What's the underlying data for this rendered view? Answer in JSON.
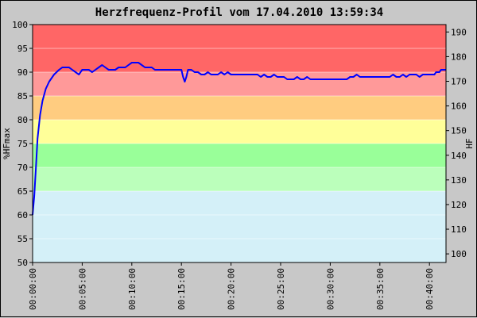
{
  "chart_data": {
    "type": "line",
    "title": "Herzfrequenz-Profil vom 17.04.2010 13:59:34",
    "ylabel": "%HFmax",
    "y2label": "HF",
    "ylim": [
      50,
      100
    ],
    "y2lim": [
      96.5,
      193
    ],
    "yticks": [
      "50",
      "55",
      "60",
      "65",
      "70",
      "75",
      "80",
      "85",
      "90",
      "95",
      "100"
    ],
    "y2ticks": [
      "100",
      "110",
      "120",
      "130",
      "140",
      "150",
      "160",
      "170",
      "180",
      "190"
    ],
    "xlim_seconds": [
      0,
      2500
    ],
    "xticks": [
      "00:00:00",
      "00:05:00",
      "00:10:00",
      "00:15:00",
      "00:20:00",
      "00:25:00",
      "00:30:00",
      "00:35:00",
      "00:40:00"
    ],
    "line_color": "#0000ff",
    "zones": [
      {
        "from": 90,
        "to": 100,
        "color": "#ff6666"
      },
      {
        "from": 85,
        "to": 90,
        "color": "#ff9999"
      },
      {
        "from": 80,
        "to": 85,
        "color": "#ffcc80"
      },
      {
        "from": 75,
        "to": 80,
        "color": "#ffff99"
      },
      {
        "from": 70,
        "to": 75,
        "color": "#99ff99"
      },
      {
        "from": 65,
        "to": 70,
        "color": "#bbffbb"
      },
      {
        "from": 50,
        "to": 65,
        "color": "#d4f0f8"
      }
    ],
    "series": [
      {
        "values": [
          [
            0,
            60
          ],
          [
            10,
            64
          ],
          [
            20,
            70
          ],
          [
            30,
            76
          ],
          [
            45,
            81
          ],
          [
            60,
            84
          ],
          [
            80,
            86.5
          ],
          [
            100,
            88
          ],
          [
            130,
            89.5
          ],
          [
            160,
            90.5
          ],
          [
            180,
            91
          ],
          [
            200,
            91
          ],
          [
            220,
            91
          ],
          [
            240,
            90.5
          ],
          [
            260,
            90
          ],
          [
            280,
            89.5
          ],
          [
            300,
            90.5
          ],
          [
            320,
            90.5
          ],
          [
            340,
            90.5
          ],
          [
            360,
            90
          ],
          [
            380,
            90.5
          ],
          [
            400,
            91
          ],
          [
            420,
            91.5
          ],
          [
            440,
            91
          ],
          [
            460,
            90.5
          ],
          [
            480,
            90.5
          ],
          [
            500,
            90.5
          ],
          [
            520,
            91
          ],
          [
            540,
            91
          ],
          [
            560,
            91
          ],
          [
            580,
            91.5
          ],
          [
            600,
            92
          ],
          [
            620,
            92
          ],
          [
            640,
            92
          ],
          [
            660,
            91.5
          ],
          [
            680,
            91
          ],
          [
            700,
            91
          ],
          [
            720,
            91
          ],
          [
            740,
            90.5
          ],
          [
            760,
            90.5
          ],
          [
            780,
            90.5
          ],
          [
            800,
            90.5
          ],
          [
            820,
            90.5
          ],
          [
            840,
            90.5
          ],
          [
            860,
            90.5
          ],
          [
            880,
            90.5
          ],
          [
            900,
            90.5
          ],
          [
            910,
            89
          ],
          [
            920,
            88
          ],
          [
            930,
            89
          ],
          [
            940,
            90.5
          ],
          [
            960,
            90.5
          ],
          [
            980,
            90
          ],
          [
            1000,
            90
          ],
          [
            1020,
            89.5
          ],
          [
            1040,
            89.5
          ],
          [
            1060,
            90
          ],
          [
            1080,
            89.5
          ],
          [
            1100,
            89.5
          ],
          [
            1120,
            89.5
          ],
          [
            1140,
            90
          ],
          [
            1160,
            89.5
          ],
          [
            1180,
            90
          ],
          [
            1200,
            89.5
          ],
          [
            1220,
            89.5
          ],
          [
            1240,
            89.5
          ],
          [
            1260,
            89.5
          ],
          [
            1280,
            89.5
          ],
          [
            1300,
            89.5
          ],
          [
            1320,
            89.5
          ],
          [
            1340,
            89.5
          ],
          [
            1360,
            89.5
          ],
          [
            1380,
            89
          ],
          [
            1400,
            89.5
          ],
          [
            1420,
            89
          ],
          [
            1440,
            89
          ],
          [
            1460,
            89.5
          ],
          [
            1480,
            89
          ],
          [
            1500,
            89
          ],
          [
            1520,
            89
          ],
          [
            1540,
            88.5
          ],
          [
            1560,
            88.5
          ],
          [
            1580,
            88.5
          ],
          [
            1600,
            89
          ],
          [
            1620,
            88.5
          ],
          [
            1640,
            88.5
          ],
          [
            1660,
            89
          ],
          [
            1680,
            88.5
          ],
          [
            1700,
            88.5
          ],
          [
            1720,
            88.5
          ],
          [
            1740,
            88.5
          ],
          [
            1760,
            88.5
          ],
          [
            1780,
            88.5
          ],
          [
            1800,
            88.5
          ],
          [
            1820,
            88.5
          ],
          [
            1840,
            88.5
          ],
          [
            1860,
            88.5
          ],
          [
            1880,
            88.5
          ],
          [
            1900,
            88.5
          ],
          [
            1920,
            89
          ],
          [
            1940,
            89
          ],
          [
            1960,
            89.5
          ],
          [
            1980,
            89
          ],
          [
            2000,
            89
          ],
          [
            2020,
            89
          ],
          [
            2040,
            89
          ],
          [
            2060,
            89
          ],
          [
            2080,
            89
          ],
          [
            2100,
            89
          ],
          [
            2120,
            89
          ],
          [
            2140,
            89
          ],
          [
            2160,
            89
          ],
          [
            2180,
            89.5
          ],
          [
            2200,
            89
          ],
          [
            2220,
            89
          ],
          [
            2240,
            89.5
          ],
          [
            2260,
            89
          ],
          [
            2280,
            89.5
          ],
          [
            2300,
            89.5
          ],
          [
            2320,
            89.5
          ],
          [
            2340,
            89
          ],
          [
            2360,
            89.5
          ],
          [
            2380,
            89.5
          ],
          [
            2400,
            89.5
          ],
          [
            2410,
            89.5
          ],
          [
            2420,
            89.5
          ],
          [
            2430,
            89.5
          ],
          [
            2440,
            90
          ],
          [
            2450,
            90
          ],
          [
            2460,
            90
          ],
          [
            2470,
            90.5
          ],
          [
            2480,
            90.5
          ],
          [
            2490,
            90.5
          ],
          [
            2500,
            90.5
          ]
        ]
      }
    ]
  }
}
